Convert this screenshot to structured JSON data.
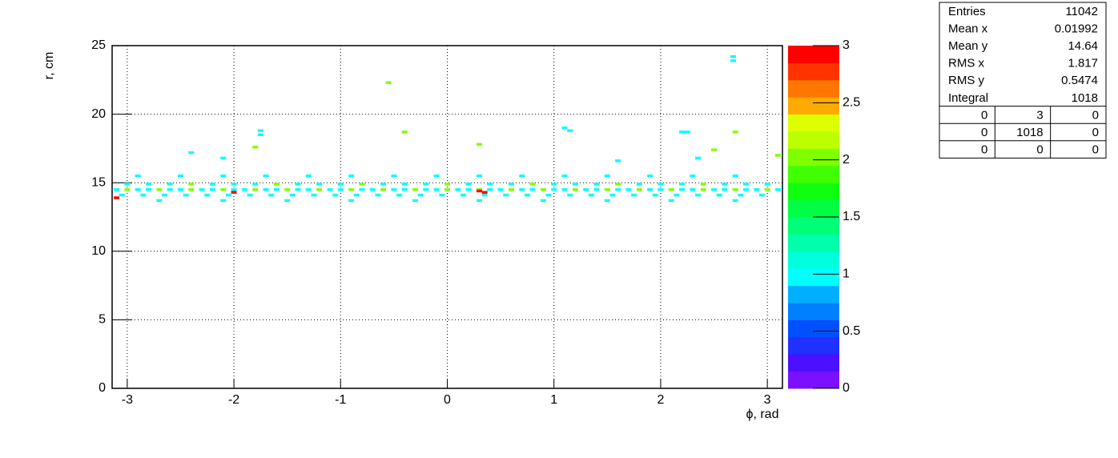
{
  "chart_data": {
    "type": "heatmap",
    "xlabel": "ϕ, rad",
    "ylabel": "r, cm",
    "xlim": [
      -3.1416,
      3.1416
    ],
    "ylim": [
      0,
      25
    ],
    "xticks": [
      -3,
      -2,
      -1,
      0,
      1,
      2,
      3
    ],
    "yticks": [
      0,
      5,
      10,
      15,
      20,
      25
    ],
    "zlim": [
      0,
      3
    ],
    "zticks": [
      0,
      0.5,
      1,
      1.5,
      2,
      2.5,
      3
    ],
    "grid": true,
    "palette": [
      "#7a10ff",
      "#4a10ff",
      "#2030ff",
      "#0050ff",
      "#0080ff",
      "#00b0ff",
      "#00ffff",
      "#00ffdd",
      "#00ffaa",
      "#00ff77",
      "#00ff44",
      "#10ff10",
      "#40ff00",
      "#7fff00",
      "#bbff00",
      "#ddff00",
      "#ffaa00",
      "#ff7700",
      "#ff3300",
      "#ff0000"
    ],
    "x": [
      -3.1,
      -3.0,
      -2.9,
      -2.8,
      -2.7,
      -2.6,
      -2.5,
      -2.4,
      -2.3,
      -2.2,
      -2.1,
      -2.0,
      -1.9,
      -1.8,
      -1.7,
      -1.6,
      -1.5,
      -1.4,
      -1.3,
      -1.2,
      -1.1,
      -1.0,
      -0.9,
      -0.8,
      -0.7,
      -0.6,
      -0.5,
      -0.4,
      -0.3,
      -0.2,
      -0.1,
      0,
      0.1,
      0.2,
      0.3,
      0.4,
      0.5,
      0.6,
      0.7,
      0.8,
      0.9,
      1.0,
      1.1,
      1.2,
      1.3,
      1.4,
      1.5,
      1.6,
      1.7,
      1.8,
      1.9,
      2.0,
      2.1,
      2.2,
      2.3,
      2.4,
      2.5,
      2.6,
      2.7,
      2.8,
      2.9,
      3.0,
      3.1,
      -3.05,
      -2.85,
      -2.65,
      -2.45,
      -2.25,
      -2.05,
      -1.85,
      -1.65,
      -1.45,
      -1.25,
      -1.05,
      -0.85,
      -0.65,
      -0.45,
      -0.25,
      -0.05,
      0.15,
      0.35,
      0.55,
      0.75,
      0.95,
      1.15,
      1.35,
      1.55,
      1.75,
      1.95,
      2.15,
      2.35,
      2.55,
      2.75,
      2.95,
      -3.0,
      -2.8,
      -2.6,
      -2.4,
      -2.2,
      -2.0,
      -1.8,
      -1.6,
      -1.4,
      -1.2,
      -1.0,
      -0.8,
      -0.6,
      -0.4,
      -0.2,
      0,
      0.2,
      0.4,
      0.6,
      0.8,
      1.0,
      1.2,
      1.4,
      1.6,
      1.8,
      2.0,
      2.2,
      2.4,
      2.6,
      2.8,
      3.0,
      -2.9,
      -2.5,
      -2.1,
      -1.7,
      -1.3,
      -0.9,
      -0.5,
      -0.1,
      0.3,
      0.7,
      1.1,
      1.5,
      1.9,
      2.3,
      2.7,
      -2.7,
      -2.1,
      -1.5,
      -0.9,
      -0.3,
      0.3,
      0.9,
      1.5,
      2.1,
      2.7,
      -0.55,
      2.68,
      2.68,
      -1.75,
      -1.75,
      -1.8,
      -0.4,
      0.3,
      1.1,
      1.15,
      2.2,
      2.25,
      2.7,
      2.5,
      -2.4,
      -2.1,
      1.6,
      2.35,
      3.1,
      -3.1,
      -2.0,
      0.35,
      0.3
    ],
    "y": [
      14.5,
      14.5,
      14.5,
      14.5,
      14.5,
      14.5,
      14.5,
      14.5,
      14.5,
      14.5,
      14.5,
      14.5,
      14.5,
      14.5,
      14.5,
      14.5,
      14.5,
      14.5,
      14.5,
      14.5,
      14.5,
      14.5,
      14.5,
      14.5,
      14.5,
      14.5,
      14.5,
      14.5,
      14.5,
      14.5,
      14.5,
      14.5,
      14.5,
      14.5,
      14.5,
      14.5,
      14.5,
      14.5,
      14.5,
      14.5,
      14.5,
      14.5,
      14.5,
      14.5,
      14.5,
      14.5,
      14.5,
      14.5,
      14.5,
      14.5,
      14.5,
      14.5,
      14.5,
      14.5,
      14.5,
      14.5,
      14.5,
      14.5,
      14.5,
      14.5,
      14.5,
      14.5,
      14.5,
      14.1,
      14.1,
      14.1,
      14.1,
      14.1,
      14.1,
      14.1,
      14.1,
      14.1,
      14.1,
      14.1,
      14.1,
      14.1,
      14.1,
      14.1,
      14.1,
      14.1,
      14.1,
      14.1,
      14.1,
      14.1,
      14.1,
      14.1,
      14.1,
      14.1,
      14.1,
      14.1,
      14.1,
      14.1,
      14.1,
      14.1,
      14.9,
      14.9,
      14.9,
      14.9,
      14.9,
      14.9,
      14.9,
      14.9,
      14.9,
      14.9,
      14.9,
      14.9,
      14.9,
      14.9,
      14.9,
      14.9,
      14.9,
      14.9,
      14.9,
      14.9,
      14.9,
      14.9,
      14.9,
      14.9,
      14.9,
      14.9,
      14.9,
      14.9,
      14.9,
      14.9,
      14.9,
      15.5,
      15.5,
      15.5,
      15.5,
      15.5,
      15.5,
      15.5,
      15.5,
      15.5,
      15.5,
      15.5,
      15.5,
      15.5,
      15.5,
      15.5,
      13.7,
      13.7,
      13.7,
      13.7,
      13.7,
      13.7,
      13.7,
      13.7,
      13.7,
      13.7,
      22.3,
      24.2,
      23.9,
      18.8,
      18.5,
      17.6,
      18.7,
      17.8,
      19.0,
      18.8,
      18.7,
      18.7,
      18.7,
      17.4,
      17.2,
      16.8,
      16.6,
      16.8,
      17.0,
      13.9,
      14.3,
      14.3,
      14.4
    ],
    "values": [
      1,
      2,
      1,
      1,
      2,
      1,
      1,
      2,
      1,
      1,
      2,
      1,
      1,
      2,
      1,
      1,
      2,
      1,
      1,
      2,
      1,
      1,
      2,
      1,
      1,
      2,
      1,
      1,
      2,
      1,
      1,
      2,
      1,
      1,
      2,
      1,
      1,
      2,
      1,
      1,
      2,
      1,
      1,
      2,
      1,
      1,
      2,
      1,
      1,
      2,
      1,
      1,
      2,
      1,
      1,
      2,
      1,
      1,
      2,
      1,
      1,
      2,
      1,
      1,
      1,
      1,
      1,
      1,
      1,
      1,
      1,
      1,
      1,
      1,
      1,
      1,
      1,
      1,
      1,
      1,
      1,
      1,
      1,
      1,
      1,
      1,
      1,
      1,
      1,
      1,
      1,
      1,
      1,
      1,
      1,
      1,
      1,
      2,
      1,
      1,
      1,
      2,
      1,
      1,
      1,
      2,
      1,
      1,
      1,
      2,
      1,
      1,
      1,
      2,
      1,
      1,
      1,
      2,
      1,
      1,
      1,
      2,
      1,
      1,
      1,
      1,
      1,
      1,
      1,
      1,
      1,
      1,
      1,
      1,
      1,
      1,
      1,
      1,
      1,
      1,
      1,
      1,
      1,
      1,
      1,
      1,
      1,
      1,
      1,
      1,
      2,
      1,
      1,
      1,
      1,
      2,
      2,
      2,
      1,
      1,
      1,
      1,
      2,
      2,
      1,
      1,
      1,
      1,
      2,
      3,
      3,
      3,
      3
    ],
    "stats": {
      "rows": [
        [
          "Entries",
          "11042"
        ],
        [
          "Mean x",
          "0.01992"
        ],
        [
          "Mean y",
          "14.64"
        ],
        [
          "RMS x",
          "1.817"
        ],
        [
          "RMS y",
          "0.5474"
        ],
        [
          "Integral",
          "1018"
        ]
      ],
      "cells": [
        [
          0,
          3,
          0
        ],
        [
          0,
          1018,
          0
        ],
        [
          0,
          0,
          0
        ]
      ]
    }
  }
}
